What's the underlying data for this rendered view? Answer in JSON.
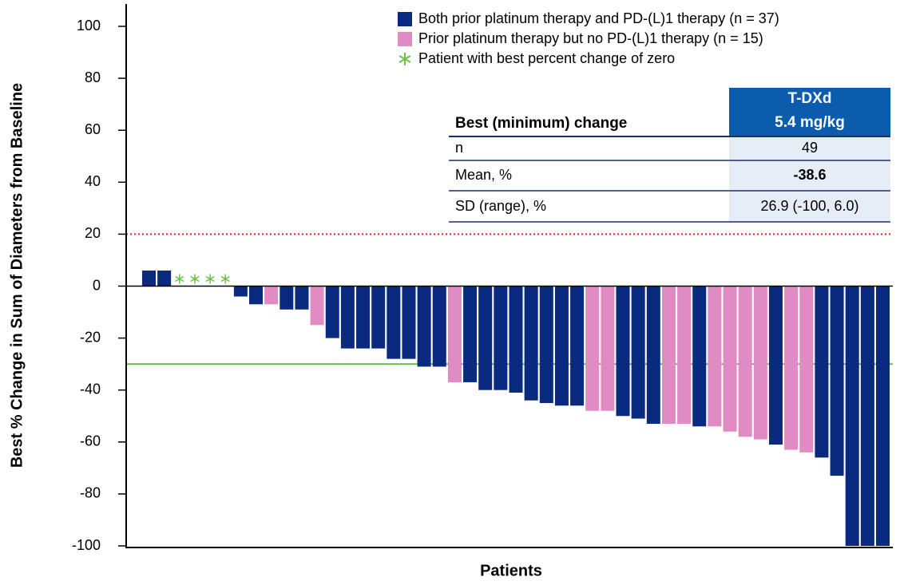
{
  "chart_data": {
    "type": "waterfall",
    "y_label": "Best % Change in Sum of Diameters from Baseline",
    "x_label": "Patients",
    "ylim": [
      -100,
      100
    ],
    "yticks": [
      -100,
      -80,
      -60,
      -40,
      -20,
      0,
      20,
      40,
      60,
      80,
      100
    ],
    "series": [
      {
        "name": "Both prior platinum therapy and PD-(L)1 therapy (n = 37)",
        "color": "#0a2a7f",
        "values": [
          6,
          6,
          null,
          null,
          null,
          null,
          -4,
          -7,
          null,
          -9,
          -9,
          null,
          -20,
          -24,
          -24,
          -24,
          -28,
          -28,
          -31,
          -31,
          null,
          -37,
          -40,
          -40,
          -41,
          -44,
          -45,
          -46,
          -46,
          null,
          null,
          -50,
          -51,
          -53,
          null,
          null,
          -54,
          null,
          null,
          null,
          null,
          -61,
          null,
          null,
          -66,
          -73,
          -100,
          -100,
          -100
        ]
      },
      {
        "name": "Prior platinum therapy but no PD-(L)1 therapy (n = 15)",
        "color": "#e08bc3",
        "values": [
          null,
          null,
          null,
          null,
          null,
          null,
          null,
          null,
          -7,
          null,
          null,
          -15,
          null,
          null,
          null,
          null,
          null,
          null,
          null,
          null,
          -37,
          null,
          null,
          null,
          null,
          null,
          null,
          null,
          null,
          -48,
          -48,
          null,
          null,
          null,
          -53,
          -53,
          null,
          -54,
          -56,
          -58,
          -59,
          null,
          -63,
          -64,
          null,
          null,
          null,
          null,
          null
        ]
      },
      {
        "name": "Patient with best percent change of zero",
        "color": "#6cc04a",
        "marker": "star",
        "values": [
          null,
          null,
          0,
          0,
          0,
          0,
          null,
          null,
          null,
          null,
          null,
          null,
          null,
          null,
          null,
          null,
          null,
          null,
          null,
          null,
          null,
          null,
          null,
          null,
          null,
          null,
          null,
          null,
          null,
          null,
          null,
          null,
          null,
          null,
          null,
          null,
          null,
          null,
          null,
          null,
          null,
          null,
          null,
          null,
          null,
          null,
          null,
          null,
          null
        ]
      }
    ],
    "reference_lines": [
      {
        "value": 20,
        "color": "#e02020",
        "style": "dotted"
      },
      {
        "value": -30,
        "color": "#6cc04a",
        "style": "solid"
      }
    ],
    "table": {
      "header": [
        "Best (minimum) change",
        "T-DXd",
        "5.4 mg/kg"
      ],
      "rows": [
        [
          "n",
          "49"
        ],
        [
          "Mean, %",
          "-38.6"
        ],
        [
          "SD (range), %",
          "26.9 (-100, 6.0)"
        ]
      ]
    }
  }
}
